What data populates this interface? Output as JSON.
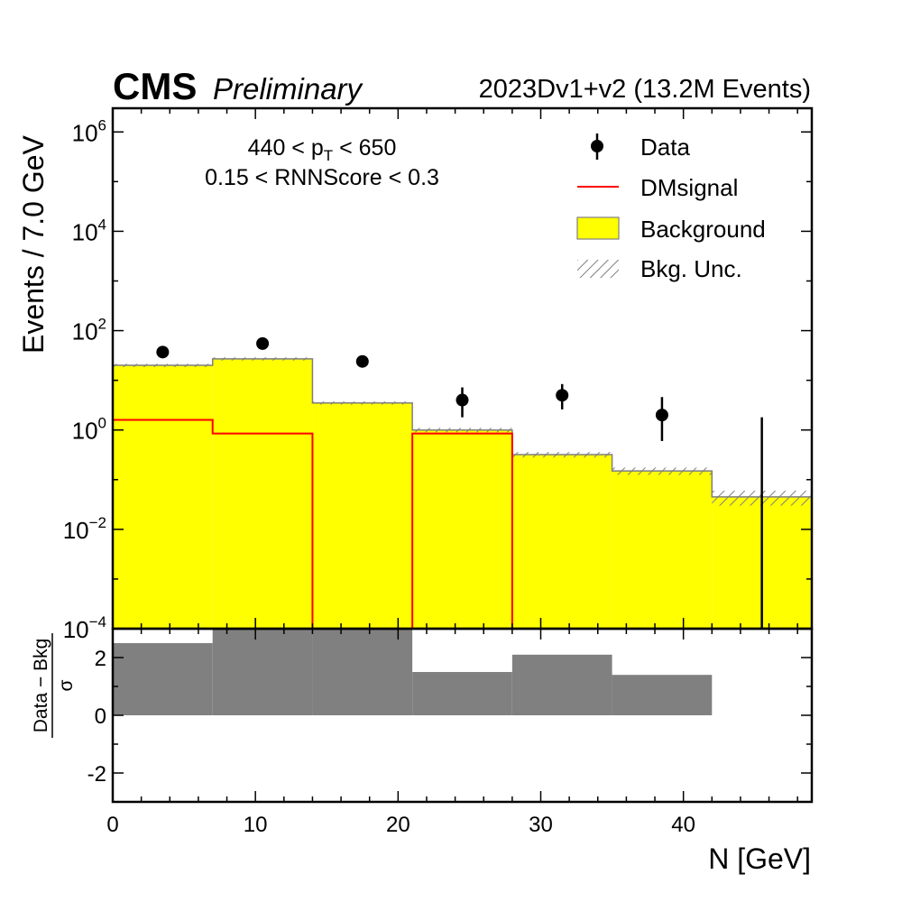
{
  "header": {
    "experiment": "CMS",
    "status": "Preliminary",
    "dataset": "2023Dv1+v2 (13.2M Events)"
  },
  "cuts": {
    "pt_prefix": "440 < p",
    "pt_sub": "T",
    "pt_suffix": " < 650",
    "rnn": "0.15 < RNNScore < 0.3"
  },
  "legend": {
    "data": "Data",
    "signal": "DMsignal",
    "background": "Background",
    "uncertainty": "Bkg. Unc."
  },
  "colors": {
    "background": "#ffff00",
    "signal": "#ff0000",
    "pull": "#808080",
    "data": "#000000",
    "hatch": "#7f7f7f"
  },
  "chart_data": {
    "type": "bar",
    "xlabel": "N [GeV]",
    "ylabel": "Events / 7.0 GeV",
    "ratio_ylabel_numerator": "Data − Bkg",
    "ratio_ylabel_denominator": "σ",
    "xlim": [
      0,
      49
    ],
    "ylim": [
      0.0001,
      3000000
    ],
    "yscale": "log",
    "ratio_ylim": [
      -3,
      3
    ],
    "x_ticks": [
      0,
      10,
      20,
      30,
      40
    ],
    "x_tick_labels": [
      "0",
      "10",
      "20",
      "30",
      "40"
    ],
    "y_ticks": [
      1000000,
      10000,
      100,
      1,
      0.01,
      0.0001
    ],
    "y_tick_base": [
      "10",
      "10",
      "10",
      "10",
      "10",
      "10"
    ],
    "y_tick_exp": [
      "6",
      "4",
      "2",
      "0",
      "−2",
      "−4"
    ],
    "ratio_ticks": [
      2,
      0,
      -2
    ],
    "ratio_tick_labels": [
      "2",
      "0",
      "-2"
    ],
    "bin_edges": [
      0,
      7,
      14,
      21,
      28,
      35,
      42,
      49
    ],
    "series": [
      {
        "name": "Background",
        "type": "step-filled",
        "values": [
          20,
          27,
          3.5,
          1.0,
          0.32,
          0.15,
          0.045
        ],
        "uncertainty": [
          1.5,
          2.0,
          0.25,
          0.1,
          0.04,
          0.025,
          0.015
        ]
      },
      {
        "name": "DMsignal",
        "type": "step",
        "values": [
          1.6,
          0.85,
          0,
          0.85,
          0,
          0,
          0
        ]
      },
      {
        "name": "Data",
        "type": "points",
        "x": [
          3.5,
          10.5,
          17.5,
          24.5,
          31.5,
          38.5,
          45.5
        ],
        "values": [
          37,
          55,
          24,
          4,
          5,
          2,
          0
        ],
        "err_low": [
          6,
          7.4,
          4.9,
          2.2,
          2.4,
          1.4,
          0
        ],
        "err_high": [
          7,
          8.5,
          5.9,
          3.2,
          3.4,
          2.6,
          1.8
        ]
      }
    ],
    "ratio": {
      "name": "Pull",
      "values": [
        2.5,
        3.5,
        3.3,
        1.5,
        2.1,
        1.4,
        0
      ]
    }
  }
}
